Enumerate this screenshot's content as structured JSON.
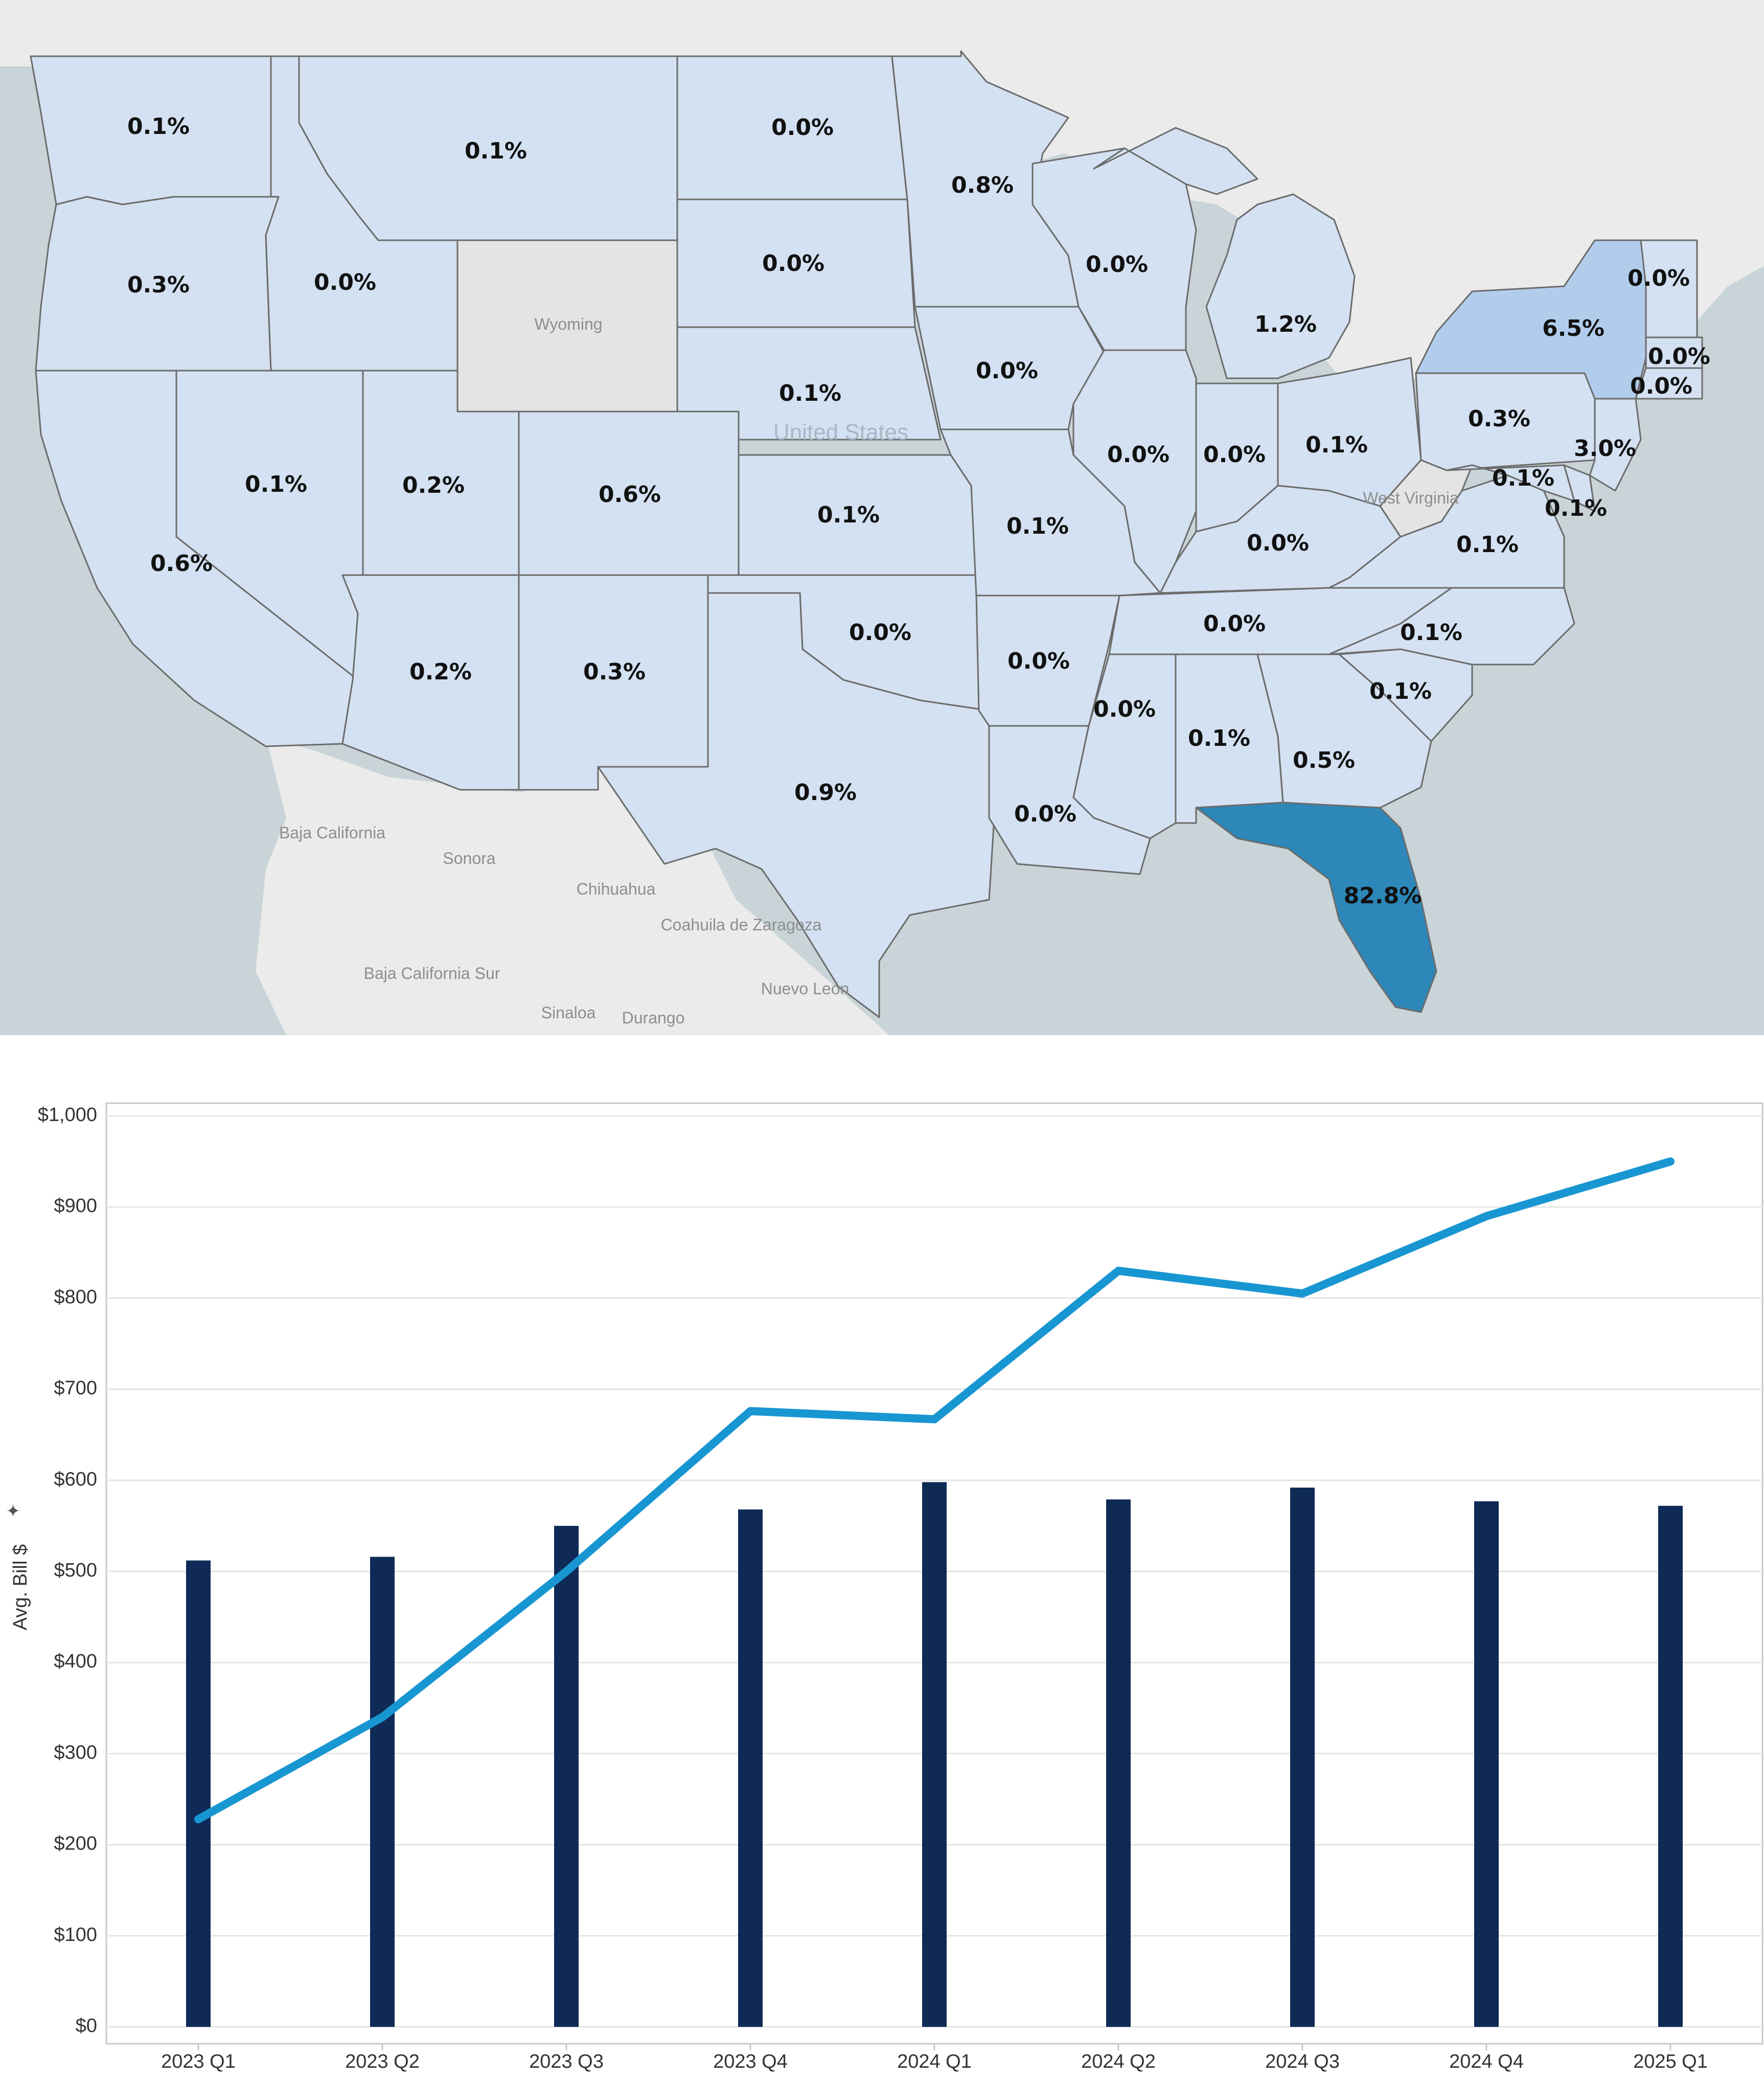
{
  "map": {
    "regions": [
      {
        "id": "WA",
        "value": "0.1%"
      },
      {
        "id": "OR",
        "value": "0.3%"
      },
      {
        "id": "CA",
        "value": "0.6%"
      },
      {
        "id": "ID",
        "value": "0.0%"
      },
      {
        "id": "NV",
        "value": "0.1%"
      },
      {
        "id": "MT",
        "value": "0.1%"
      },
      {
        "id": "WY",
        "value": ""
      },
      {
        "id": "UT",
        "value": "0.2%"
      },
      {
        "id": "AZ",
        "value": "0.2%"
      },
      {
        "id": "CO",
        "value": "0.6%"
      },
      {
        "id": "NM",
        "value": "0.3%"
      },
      {
        "id": "ND",
        "value": "0.0%"
      },
      {
        "id": "SD",
        "value": "0.0%"
      },
      {
        "id": "NE",
        "value": "0.1%"
      },
      {
        "id": "KS",
        "value": "0.1%"
      },
      {
        "id": "OK",
        "value": "0.0%"
      },
      {
        "id": "TX",
        "value": "0.9%"
      },
      {
        "id": "MN",
        "value": "0.8%"
      },
      {
        "id": "IA",
        "value": "0.0%"
      },
      {
        "id": "MO",
        "value": "0.1%"
      },
      {
        "id": "AR",
        "value": "0.0%"
      },
      {
        "id": "LA",
        "value": "0.0%"
      },
      {
        "id": "WI",
        "value": "0.0%"
      },
      {
        "id": "IL",
        "value": "0.0%"
      },
      {
        "id": "MI",
        "value": "1.2%"
      },
      {
        "id": "IN",
        "value": "0.0%"
      },
      {
        "id": "OH",
        "value": "0.1%"
      },
      {
        "id": "KY",
        "value": "0.0%"
      },
      {
        "id": "TN",
        "value": "0.0%"
      },
      {
        "id": "MS",
        "value": "0.0%"
      },
      {
        "id": "AL",
        "value": "0.1%"
      },
      {
        "id": "GA",
        "value": "0.5%"
      },
      {
        "id": "FL",
        "value": "82.8%"
      },
      {
        "id": "SC",
        "value": "0.1%"
      },
      {
        "id": "NC",
        "value": "0.1%"
      },
      {
        "id": "VA",
        "value": "0.1%"
      },
      {
        "id": "WV",
        "value": ""
      },
      {
        "id": "PA",
        "value": "0.3%"
      },
      {
        "id": "NY",
        "value": "6.5%"
      },
      {
        "id": "VT",
        "value": "0.0%"
      },
      {
        "id": "MA",
        "value": "0.0%"
      },
      {
        "id": "CT",
        "value": "0.0%"
      },
      {
        "id": "NJ",
        "value": "3.0%"
      },
      {
        "id": "MD",
        "value": "0.1%"
      },
      {
        "id": "DE",
        "value": "0.1%"
      }
    ],
    "background_labels": {
      "wyoming": "Wyoming",
      "west_virginia": "West Virginia",
      "united_states": "United States",
      "baja_california": "Baja California",
      "sonora": "Sonora",
      "chihuahua": "Chihuahua",
      "coahuila": "Coahuila de Zaragoza",
      "baja_california_sur": "Baja California Sur",
      "nuevo_leon": "Nuevo León",
      "sinaloa": "Sinaloa",
      "durango": "Durango"
    },
    "colors": {
      "low": "#d3e1f2",
      "mid": "#b2cdec",
      "high": "#2d87b8",
      "no_data": "#e4e4e4",
      "water": "#c8d4d7",
      "land": "#ebebeb"
    }
  },
  "chart_data": {
    "type": "bar",
    "categories": [
      "2023 Q1",
      "2023 Q2",
      "2023 Q3",
      "2023 Q4",
      "2024 Q1",
      "2024 Q2",
      "2024 Q3",
      "2024 Q4",
      "2025 Q1"
    ],
    "ylabel": "Avg. Bill $",
    "ylim": [
      0,
      1000
    ],
    "yticks": [
      "$0",
      "$100",
      "$200",
      "$300",
      "$400",
      "$500",
      "$600",
      "$700",
      "$800",
      "$900",
      "$1,000"
    ],
    "series": [
      {
        "type": "bar",
        "color": "#0f2a56",
        "values": [
          512,
          516,
          550,
          568,
          598,
          579,
          592,
          577,
          572
        ]
      },
      {
        "type": "line",
        "color": "#1896d2",
        "values": [
          228,
          340,
          500,
          676,
          667,
          830,
          805,
          890,
          950
        ]
      }
    ],
    "grid": true
  }
}
